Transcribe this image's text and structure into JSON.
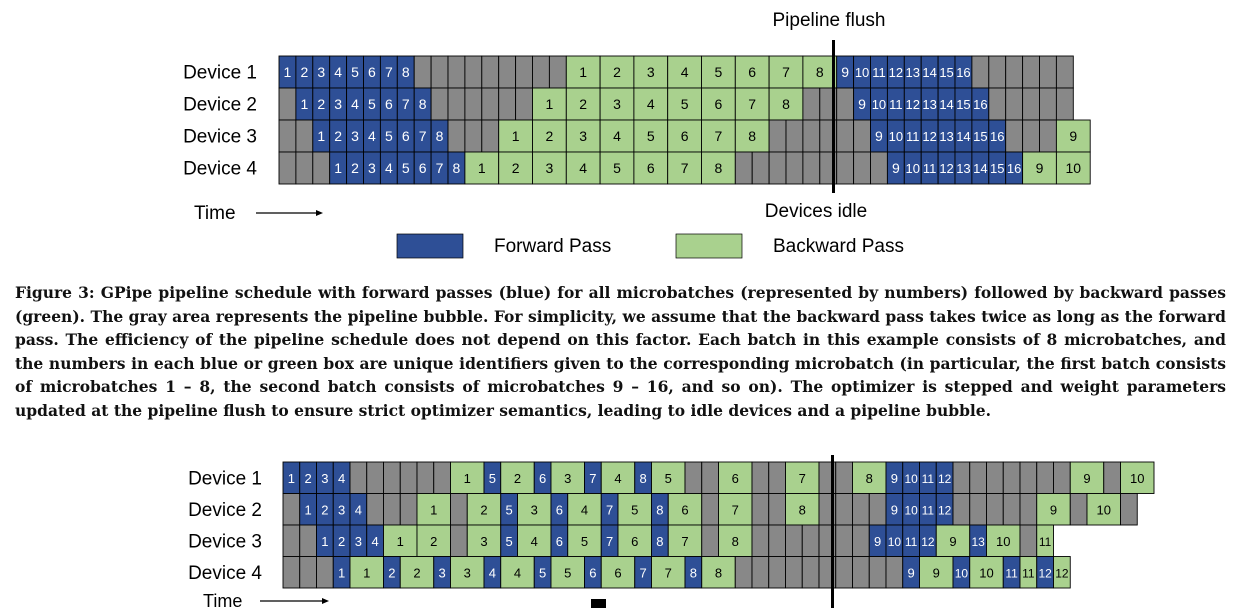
{
  "colors": {
    "forward": "#2e4f96",
    "backward": "#a9d18e",
    "idle": "#888888",
    "grid": "#000000"
  },
  "figure_top": {
    "devices": [
      "Device 1",
      "Device 2",
      "Device 3",
      "Device 4"
    ],
    "pipeline_flush_label": "Pipeline flush",
    "devices_idle_label": "Devices idle",
    "time_label": "Time",
    "legend": {
      "forward": "Forward Pass",
      "backward": "Backward Pass"
    },
    "rows": [
      [
        [
          "F",
          "1"
        ],
        [
          "F",
          "2"
        ],
        [
          "F",
          "3"
        ],
        [
          "F",
          "4"
        ],
        [
          "F",
          "5"
        ],
        [
          "F",
          "6"
        ],
        [
          "F",
          "7"
        ],
        [
          "F",
          "8"
        ],
        [
          "I"
        ],
        [
          "I"
        ],
        [
          "I"
        ],
        [
          "I"
        ],
        [
          "I"
        ],
        [
          "I"
        ],
        [
          "I"
        ],
        [
          "I"
        ],
        [
          "I"
        ],
        [
          "B",
          "1"
        ],
        [
          "B",
          "2"
        ],
        [
          "B",
          "3"
        ],
        [
          "B",
          "4"
        ],
        [
          "B",
          "5"
        ],
        [
          "B",
          "6"
        ],
        [
          "B",
          "7"
        ],
        [
          "B",
          "8"
        ],
        [
          "F",
          "9"
        ],
        [
          "F",
          "10"
        ],
        [
          "F",
          "11"
        ],
        [
          "F",
          "12"
        ],
        [
          "F",
          "13"
        ],
        [
          "F",
          "14"
        ],
        [
          "F",
          "15"
        ],
        [
          "F",
          "16"
        ],
        [
          "I"
        ],
        [
          "I"
        ],
        [
          "I"
        ],
        [
          "I"
        ],
        [
          "I"
        ],
        [
          "I"
        ]
      ],
      [
        [
          "I"
        ],
        [
          "F",
          "1"
        ],
        [
          "F",
          "2"
        ],
        [
          "F",
          "3"
        ],
        [
          "F",
          "4"
        ],
        [
          "F",
          "5"
        ],
        [
          "F",
          "6"
        ],
        [
          "F",
          "7"
        ],
        [
          "F",
          "8"
        ],
        [
          "I"
        ],
        [
          "I"
        ],
        [
          "I"
        ],
        [
          "I"
        ],
        [
          "I"
        ],
        [
          "I"
        ],
        [
          "B",
          "1"
        ],
        [
          "B",
          "2"
        ],
        [
          "B",
          "3"
        ],
        [
          "B",
          "4"
        ],
        [
          "B",
          "5"
        ],
        [
          "B",
          "6"
        ],
        [
          "B",
          "7"
        ],
        [
          "B",
          "8"
        ],
        [
          "I"
        ],
        [
          "I"
        ],
        [
          "I"
        ],
        [
          "F",
          "9"
        ],
        [
          "F",
          "10"
        ],
        [
          "F",
          "11"
        ],
        [
          "F",
          "12"
        ],
        [
          "F",
          "13"
        ],
        [
          "F",
          "14"
        ],
        [
          "F",
          "15"
        ],
        [
          "F",
          "16"
        ],
        [
          "I"
        ],
        [
          "I"
        ],
        [
          "I"
        ],
        [
          "I"
        ],
        [
          "I"
        ]
      ],
      [
        [
          "I"
        ],
        [
          "I"
        ],
        [
          "F",
          "1"
        ],
        [
          "F",
          "2"
        ],
        [
          "F",
          "3"
        ],
        [
          "F",
          "4"
        ],
        [
          "F",
          "5"
        ],
        [
          "F",
          "6"
        ],
        [
          "F",
          "7"
        ],
        [
          "F",
          "8"
        ],
        [
          "I"
        ],
        [
          "I"
        ],
        [
          "I"
        ],
        [
          "B",
          "1"
        ],
        [
          "B",
          "2"
        ],
        [
          "B",
          "3"
        ],
        [
          "B",
          "4"
        ],
        [
          "B",
          "5"
        ],
        [
          "B",
          "6"
        ],
        [
          "B",
          "7"
        ],
        [
          "B",
          "8"
        ],
        [
          "I"
        ],
        [
          "I"
        ],
        [
          "I"
        ],
        [
          "I"
        ],
        [
          "I"
        ],
        [
          "I"
        ],
        [
          "F",
          "9"
        ],
        [
          "F",
          "10"
        ],
        [
          "F",
          "11"
        ],
        [
          "F",
          "12"
        ],
        [
          "F",
          "13"
        ],
        [
          "F",
          "14"
        ],
        [
          "F",
          "15"
        ],
        [
          "F",
          "16"
        ],
        [
          "I"
        ],
        [
          "I"
        ],
        [
          "I"
        ],
        [
          "B",
          "9"
        ]
      ],
      [
        [
          "I"
        ],
        [
          "I"
        ],
        [
          "I"
        ],
        [
          "F",
          "1"
        ],
        [
          "F",
          "2"
        ],
        [
          "F",
          "3"
        ],
        [
          "F",
          "4"
        ],
        [
          "F",
          "5"
        ],
        [
          "F",
          "6"
        ],
        [
          "F",
          "7"
        ],
        [
          "F",
          "8"
        ],
        [
          "B",
          "1"
        ],
        [
          "B",
          "2"
        ],
        [
          "B",
          "3"
        ],
        [
          "B",
          "4"
        ],
        [
          "B",
          "5"
        ],
        [
          "B",
          "6"
        ],
        [
          "B",
          "7"
        ],
        [
          "B",
          "8"
        ],
        [
          "I"
        ],
        [
          "I"
        ],
        [
          "I"
        ],
        [
          "I"
        ],
        [
          "I"
        ],
        [
          "I"
        ],
        [
          "I"
        ],
        [
          "I"
        ],
        [
          "I"
        ],
        [
          "F",
          "9"
        ],
        [
          "F",
          "10"
        ],
        [
          "F",
          "11"
        ],
        [
          "F",
          "12"
        ],
        [
          "F",
          "13"
        ],
        [
          "F",
          "14"
        ],
        [
          "F",
          "15"
        ],
        [
          "F",
          "16"
        ],
        [
          "B",
          "9"
        ],
        [
          "B",
          "10"
        ]
      ]
    ]
  },
  "caption": "Figure 3: GPipe pipeline schedule with forward passes (blue) for all microbatches (represented by numbers) followed by backward passes (green). The gray area represents the pipeline bubble. For simplicity, we assume that the backward pass takes twice as long as the forward pass. The efficiency of the pipeline schedule does not depend on this factor. Each batch in this example consists of 8 microbatches, and the numbers in each blue or green box are unique identifiers given to the corresponding microbatch (in particular, the first batch consists of microbatches 1 – 8, the second batch consists of microbatches 9 – 16, and so on). The optimizer is stepped and weight parameters updated at the pipeline flush to ensure strict optimizer semantics, leading to idle devices and a pipeline bubble.",
  "figure_bottom": {
    "devices": [
      "Device 1",
      "Device 2",
      "Device 3",
      "Device 4"
    ],
    "time_label": "Time",
    "rows": [
      [
        [
          "F",
          "1"
        ],
        [
          "F",
          "2"
        ],
        [
          "F",
          "3"
        ],
        [
          "F",
          "4"
        ],
        [
          "I"
        ],
        [
          "I"
        ],
        [
          "I"
        ],
        [
          "I"
        ],
        [
          "I"
        ],
        [
          "I"
        ],
        [
          "B",
          "1"
        ],
        [
          "F",
          "5"
        ],
        [
          "B",
          "2"
        ],
        [
          "F",
          "6"
        ],
        [
          "B",
          "3"
        ],
        [
          "F",
          "7"
        ],
        [
          "B",
          "4"
        ],
        [
          "F",
          "8"
        ],
        [
          "B",
          "5"
        ],
        [
          "I"
        ],
        [
          "I"
        ],
        [
          "B",
          "6"
        ],
        [
          "I"
        ],
        [
          "I"
        ],
        [
          "B",
          "7"
        ],
        [
          "I"
        ],
        [
          "I"
        ],
        [
          "B",
          "8"
        ],
        [
          "F",
          "9"
        ],
        [
          "F",
          "10"
        ],
        [
          "F",
          "11"
        ],
        [
          "F",
          "12"
        ],
        [
          "I"
        ],
        [
          "I"
        ],
        [
          "I"
        ],
        [
          "I"
        ],
        [
          "I"
        ],
        [
          "I"
        ],
        [
          "I"
        ],
        [
          "B",
          "9"
        ],
        [
          "I"
        ],
        [
          "B",
          "10"
        ]
      ],
      [
        [
          "I"
        ],
        [
          "F",
          "1"
        ],
        [
          "F",
          "2"
        ],
        [
          "F",
          "3"
        ],
        [
          "F",
          "4"
        ],
        [
          "I"
        ],
        [
          "I"
        ],
        [
          "I"
        ],
        [
          "B",
          "1"
        ],
        [
          "I"
        ],
        [
          "B",
          "2"
        ],
        [
          "F",
          "5"
        ],
        [
          "B",
          "3"
        ],
        [
          "F",
          "6"
        ],
        [
          "B",
          "4"
        ],
        [
          "F",
          "7"
        ],
        [
          "B",
          "5"
        ],
        [
          "F",
          "8"
        ],
        [
          "B",
          "6"
        ],
        [
          "I"
        ],
        [
          "B",
          "7"
        ],
        [
          "I"
        ],
        [
          "I"
        ],
        [
          "B",
          "8"
        ],
        [
          "I"
        ],
        [
          "I"
        ],
        [
          "I"
        ],
        [
          "I"
        ],
        [
          "F",
          "9"
        ],
        [
          "F",
          "10"
        ],
        [
          "F",
          "11"
        ],
        [
          "F",
          "12"
        ],
        [
          "I"
        ],
        [
          "I"
        ],
        [
          "I"
        ],
        [
          "I"
        ],
        [
          "I"
        ],
        [
          "B",
          "9"
        ],
        [
          "I"
        ],
        [
          "B",
          "10"
        ],
        [
          "I"
        ]
      ],
      [
        [
          "I"
        ],
        [
          "I"
        ],
        [
          "F",
          "1"
        ],
        [
          "F",
          "2"
        ],
        [
          "F",
          "3"
        ],
        [
          "F",
          "4"
        ],
        [
          "B",
          "1"
        ],
        [
          "B",
          "2"
        ],
        [
          "I"
        ],
        [
          "B",
          "3"
        ],
        [
          "F",
          "5"
        ],
        [
          "B",
          "4"
        ],
        [
          "F",
          "6"
        ],
        [
          "B",
          "5"
        ],
        [
          "F",
          "7"
        ],
        [
          "B",
          "6"
        ],
        [
          "F",
          "8"
        ],
        [
          "B",
          "7"
        ],
        [
          "I"
        ],
        [
          "B",
          "8"
        ],
        [
          "I"
        ],
        [
          "I"
        ],
        [
          "I"
        ],
        [
          "I"
        ],
        [
          "I"
        ],
        [
          "I"
        ],
        [
          "I"
        ],
        [
          "F",
          "9"
        ],
        [
          "F",
          "10"
        ],
        [
          "F",
          "11"
        ],
        [
          "F",
          "12"
        ],
        [
          "B",
          "9"
        ],
        [
          "F",
          "13"
        ],
        [
          "B",
          "10"
        ],
        [
          "I"
        ],
        [
          "B",
          "11"
        ]
      ],
      [
        [
          "I"
        ],
        [
          "I"
        ],
        [
          "I"
        ],
        [
          "F",
          "1"
        ],
        [
          "B",
          "1"
        ],
        [
          "F",
          "2"
        ],
        [
          "B",
          "2"
        ],
        [
          "F",
          "3"
        ],
        [
          "B",
          "3"
        ],
        [
          "F",
          "4"
        ],
        [
          "B",
          "4"
        ],
        [
          "F",
          "5"
        ],
        [
          "B",
          "5"
        ],
        [
          "F",
          "6"
        ],
        [
          "B",
          "6"
        ],
        [
          "F",
          "7"
        ],
        [
          "B",
          "7"
        ],
        [
          "F",
          "8"
        ],
        [
          "B",
          "8"
        ],
        [
          "I"
        ],
        [
          "I"
        ],
        [
          "I"
        ],
        [
          "I"
        ],
        [
          "I"
        ],
        [
          "I"
        ],
        [
          "I"
        ],
        [
          "I"
        ],
        [
          "I"
        ],
        [
          "I"
        ],
        [
          "F",
          "9"
        ],
        [
          "B",
          "9"
        ],
        [
          "F",
          "10"
        ],
        [
          "B",
          "10"
        ],
        [
          "F",
          "11"
        ],
        [
          "B",
          "11"
        ],
        [
          "F",
          "12"
        ],
        [
          "B",
          "12"
        ]
      ]
    ]
  }
}
